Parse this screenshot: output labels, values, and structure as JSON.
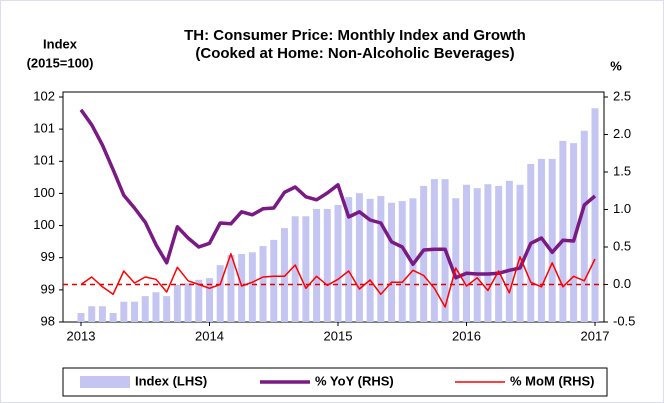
{
  "chart_data": {
    "type": "combo",
    "title": "TH: Consumer Price: Monthly Index and Growth",
    "subtitle": "(Cooked at Home: Non-Alcoholic Beverages)",
    "ylabel": [
      "Index",
      "(2015=100)"
    ],
    "y2label": "%",
    "categories": [
      "2013",
      null,
      null,
      null,
      null,
      null,
      null,
      null,
      null,
      null,
      null,
      null,
      "2014",
      null,
      null,
      null,
      null,
      null,
      null,
      null,
      null,
      null,
      null,
      null,
      "2015",
      null,
      null,
      null,
      null,
      null,
      null,
      null,
      null,
      null,
      null,
      null,
      "2016",
      null,
      null,
      null,
      null,
      null,
      null,
      null,
      null,
      null,
      null,
      null,
      "2017"
    ],
    "ylim": [
      98,
      102
    ],
    "yticks": [
      98,
      {
        "value": 98.571,
        "label": "99"
      },
      {
        "value": 99.143,
        "label": "99"
      },
      {
        "value": 99.714,
        "label": "100"
      },
      {
        "value": 100.286,
        "label": "100"
      },
      {
        "value": 100.857,
        "label": "101"
      },
      {
        "value": 101.429,
        "label": "101"
      },
      102
    ],
    "y2lim": [
      -0.5,
      2.5
    ],
    "y2ticks": [
      -0.5,
      {
        "value": 0,
        "label": "0.0"
      },
      0.5,
      {
        "value": 1,
        "label": "1.0"
      },
      1.5,
      {
        "value": 2,
        "label": "2.0"
      },
      2.5
    ],
    "zero_line": true,
    "series": [
      {
        "name": "Index (LHS)",
        "type": "bar",
        "color": "#c5c5f2",
        "axis": "y",
        "values": [
          98.16,
          98.28,
          98.28,
          98.16,
          98.36,
          98.36,
          98.46,
          98.53,
          98.46,
          98.66,
          98.69,
          98.75,
          98.78,
          99.01,
          99.19,
          99.21,
          99.24,
          99.35,
          99.46,
          99.67,
          99.88,
          99.88,
          100.01,
          100.01,
          100.08,
          100.22,
          100.29,
          100.19,
          100.24,
          100.12,
          100.15,
          100.2,
          100.42,
          100.54,
          100.54,
          100.2,
          100.44,
          100.38,
          100.45,
          100.42,
          100.51,
          100.44,
          100.81,
          100.9,
          100.9,
          101.22,
          101.18,
          101.4,
          101.8
        ]
      },
      {
        "name": "% YoY (RHS)",
        "type": "line",
        "color": "#7a1a84",
        "axis": "y2",
        "values": [
          2.33,
          2.13,
          1.86,
          1.53,
          1.19,
          1.02,
          0.83,
          0.53,
          0.29,
          0.77,
          0.62,
          0.5,
          0.55,
          0.82,
          0.81,
          0.97,
          0.93,
          1.01,
          1.02,
          1.23,
          1.3,
          1.17,
          1.13,
          1.22,
          1.33,
          0.9,
          0.97,
          0.86,
          0.82,
          0.57,
          0.5,
          0.27,
          0.46,
          0.47,
          0.47,
          0.09,
          0.15,
          0.14,
          0.14,
          0.15,
          0.19,
          0.22,
          0.55,
          0.62,
          0.43,
          0.59,
          0.58,
          1.06,
          1.18
        ]
      },
      {
        "name": "% MoM (RHS)",
        "type": "line",
        "color": "#ff0000",
        "axis": "y2",
        "values": [
          0,
          0.1,
          -0.03,
          -0.13,
          0.18,
          0.02,
          0.1,
          0.07,
          -0.1,
          0.23,
          0.05,
          0,
          -0.05,
          0,
          0.41,
          -0.02,
          0.03,
          0.1,
          0.11,
          0.11,
          0.26,
          -0.05,
          0.11,
          -0.01,
          0.07,
          0.18,
          -0.06,
          0.06,
          -0.13,
          0.03,
          0.03,
          0.19,
          0.12,
          -0.05,
          -0.3,
          0.22,
          -0.02,
          0.09,
          -0.08,
          0.18,
          -0.11,
          0.37,
          0.03,
          -0.03,
          0.29,
          -0.03,
          0.11,
          0.05,
          0.34
        ]
      }
    ]
  }
}
